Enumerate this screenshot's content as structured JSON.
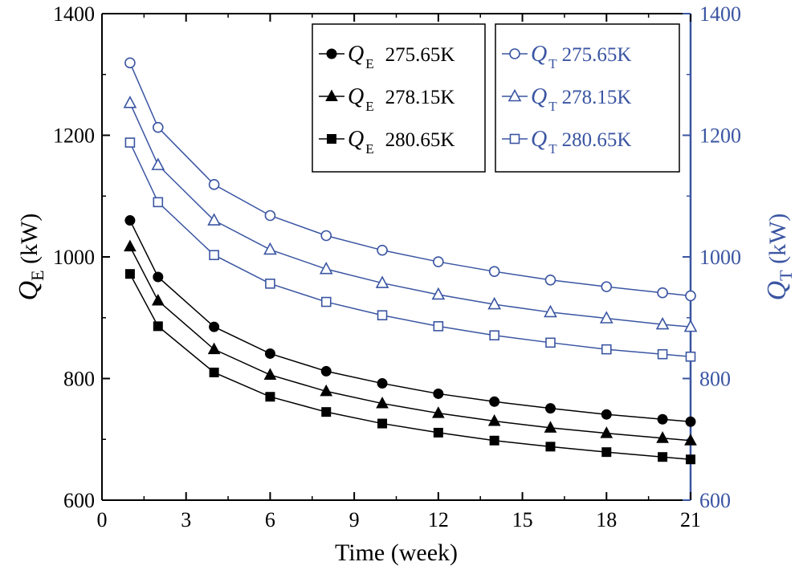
{
  "chart_data": {
    "type": "line",
    "x": [
      1,
      2,
      4,
      6,
      8,
      10,
      12,
      14,
      16,
      18,
      20,
      21
    ],
    "xlabel": "Time (week)",
    "xlim": [
      0,
      21
    ],
    "xticks": [
      "0",
      "3",
      "6",
      "9",
      "12",
      "15",
      "18",
      "21"
    ],
    "ylabel_left": {
      "symbol": "Q",
      "subscript": "E",
      "unit": " (kW)"
    },
    "ylabel_right": {
      "symbol": "Q",
      "subscript": "T",
      "unit": " (kW)"
    },
    "ylim": [
      600,
      1400
    ],
    "yticks_left": [
      "600",
      "800",
      "1000",
      "1200",
      "1400"
    ],
    "yticks_right": [
      "600",
      "800",
      "1000",
      "1200",
      "1400"
    ],
    "series": [
      {
        "name": "QE 275.65K",
        "symbol": "Q",
        "subscript": "E",
        "temp": "275.65K",
        "marker": "circle",
        "filled": true,
        "color": "#000000",
        "values": [
          1060,
          967,
          885,
          841,
          812,
          792,
          775,
          762,
          751,
          741,
          733,
          729
        ]
      },
      {
        "name": "QE 278.15K",
        "symbol": "Q",
        "subscript": "E",
        "temp": "278.15K",
        "marker": "triangle",
        "filled": true,
        "color": "#000000",
        "values": [
          1017,
          928,
          848,
          806,
          779,
          759,
          743,
          730,
          719,
          710,
          702,
          698
        ]
      },
      {
        "name": "QE 280.65K",
        "symbol": "Q",
        "subscript": "E",
        "temp": "280.65K",
        "marker": "square",
        "filled": true,
        "color": "#000000",
        "values": [
          972,
          886,
          810,
          770,
          745,
          726,
          711,
          698,
          688,
          679,
          671,
          667
        ]
      },
      {
        "name": "QT 275.65K",
        "symbol": "Q",
        "subscript": "T",
        "temp": "275.65K",
        "marker": "circle",
        "filled": false,
        "color": "#3a55a2",
        "values": [
          1319,
          1213,
          1119,
          1068,
          1035,
          1011,
          992,
          976,
          962,
          951,
          941,
          936
        ]
      },
      {
        "name": "QT 278.15K",
        "symbol": "Q",
        "subscript": "T",
        "temp": "278.15K",
        "marker": "triangle",
        "filled": false,
        "color": "#3a55a2",
        "values": [
          1253,
          1151,
          1060,
          1012,
          980,
          957,
          938,
          922,
          909,
          899,
          889,
          885
        ]
      },
      {
        "name": "QT 280.65K",
        "symbol": "Q",
        "subscript": "T",
        "temp": "280.65K",
        "marker": "square",
        "filled": false,
        "color": "#3a55a2",
        "values": [
          1188,
          1090,
          1003,
          956,
          926,
          904,
          886,
          871,
          859,
          848,
          840,
          836
        ]
      }
    ],
    "legend": [
      {
        "placement": "top-center",
        "entries": [
          0,
          1,
          2
        ]
      },
      {
        "placement": "top-right",
        "entries": [
          3,
          4,
          5
        ]
      }
    ],
    "colors": {
      "left_axis": "#000000",
      "right_axis": "#3a55a2"
    },
    "grid": false
  }
}
